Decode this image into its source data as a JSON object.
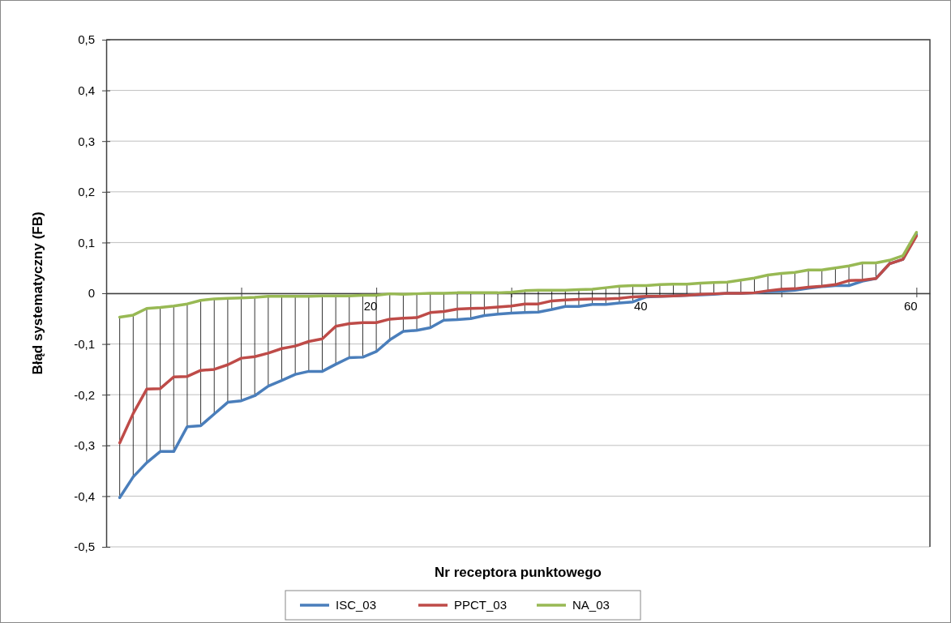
{
  "chart_data": {
    "type": "line",
    "xlabel": "Nr receptora punktowego",
    "ylabel": "Błąd systematyczny (FB)",
    "x": [
      1,
      2,
      3,
      4,
      5,
      6,
      7,
      8,
      9,
      10,
      11,
      12,
      13,
      14,
      15,
      16,
      17,
      18,
      19,
      20,
      21,
      22,
      23,
      24,
      25,
      26,
      27,
      28,
      29,
      30,
      31,
      32,
      33,
      34,
      35,
      36,
      37,
      38,
      39,
      40,
      41,
      42,
      43,
      44,
      45,
      46,
      47,
      48,
      49,
      50,
      51,
      52,
      53,
      54,
      55,
      56,
      57,
      58,
      59,
      60
    ],
    "xlim": [
      0,
      61
    ],
    "xticks": [
      {
        "value": 10,
        "label": null
      },
      20,
      {
        "value": 30,
        "label": null
      },
      40,
      {
        "value": 50,
        "label": null
      },
      60
    ],
    "ylim": [
      -0.5,
      0.5
    ],
    "yticks": [
      {
        "value": -0.5,
        "label": "-0,5"
      },
      {
        "value": -0.4,
        "label": "-0,4"
      },
      {
        "value": -0.3,
        "label": "-0,3"
      },
      {
        "value": -0.2,
        "label": "-0,2"
      },
      {
        "value": -0.1,
        "label": "-0,1"
      },
      0,
      {
        "value": 0.1,
        "label": "0,1"
      },
      {
        "value": 0.2,
        "label": "0,2"
      },
      {
        "value": 0.3,
        "label": "0,3"
      },
      {
        "value": 0.4,
        "label": "0,4"
      },
      {
        "value": 0.5,
        "label": "0,5"
      }
    ],
    "grid": "y",
    "legend": "bottom",
    "marker": "none",
    "line_style": "solid",
    "series": [
      {
        "name": "ISC_03",
        "color": "#4a7ebb",
        "values": [
          -0.403,
          -0.362,
          -0.334,
          -0.312,
          -0.312,
          -0.263,
          -0.261,
          -0.238,
          -0.215,
          -0.212,
          -0.202,
          -0.183,
          -0.172,
          -0.16,
          -0.154,
          -0.154,
          -0.14,
          -0.127,
          -0.126,
          -0.115,
          -0.092,
          -0.075,
          -0.073,
          -0.068,
          -0.053,
          -0.052,
          -0.05,
          -0.044,
          -0.041,
          -0.039,
          -0.038,
          -0.037,
          -0.032,
          -0.026,
          -0.026,
          -0.022,
          -0.022,
          -0.019,
          -0.017,
          -0.007,
          -0.006,
          -0.005,
          -0.004,
          -0.003,
          -0.002,
          0,
          0,
          0.001,
          0.003,
          0.004,
          0.006,
          0.01,
          0.013,
          0.015,
          0.015,
          0.024,
          0.029,
          0.058,
          0.067,
          0.116
        ]
      },
      {
        "name": "PPCT_03",
        "color": "#be4b48",
        "values": [
          -0.295,
          -0.237,
          -0.189,
          -0.188,
          -0.165,
          -0.164,
          -0.152,
          -0.15,
          -0.141,
          -0.128,
          -0.125,
          -0.118,
          -0.109,
          -0.104,
          -0.095,
          -0.09,
          -0.065,
          -0.06,
          -0.058,
          -0.058,
          -0.051,
          -0.049,
          -0.048,
          -0.038,
          -0.036,
          -0.031,
          -0.03,
          -0.029,
          -0.027,
          -0.025,
          -0.021,
          -0.021,
          -0.015,
          -0.013,
          -0.012,
          -0.011,
          -0.011,
          -0.01,
          -0.007,
          -0.006,
          -0.006,
          -0.005,
          -0.004,
          -0.002,
          -0.001,
          0,
          0,
          0.001,
          0.005,
          0.008,
          0.009,
          0.012,
          0.014,
          0.017,
          0.025,
          0.026,
          0.029,
          0.058,
          0.067,
          0.113
        ]
      },
      {
        "name": "NA_03",
        "color": "#98b954",
        "values": [
          -0.047,
          -0.043,
          -0.03,
          -0.028,
          -0.025,
          -0.021,
          -0.014,
          -0.011,
          -0.01,
          -0.009,
          -0.008,
          -0.006,
          -0.006,
          -0.006,
          -0.006,
          -0.005,
          -0.005,
          -0.005,
          -0.004,
          -0.004,
          -0.001,
          -0.002,
          -0.001,
          0,
          0,
          0.001,
          0.001,
          0.001,
          0.001,
          0.002,
          0.005,
          0.006,
          0.006,
          0.006,
          0.007,
          0.008,
          0.011,
          0.014,
          0.015,
          0.015,
          0.017,
          0.018,
          0.018,
          0.02,
          0.021,
          0.022,
          0.026,
          0.03,
          0.036,
          0.039,
          0.041,
          0.046,
          0.046,
          0.05,
          0.054,
          0.06,
          0.06,
          0.065,
          0.074,
          0.12
        ]
      }
    ]
  }
}
